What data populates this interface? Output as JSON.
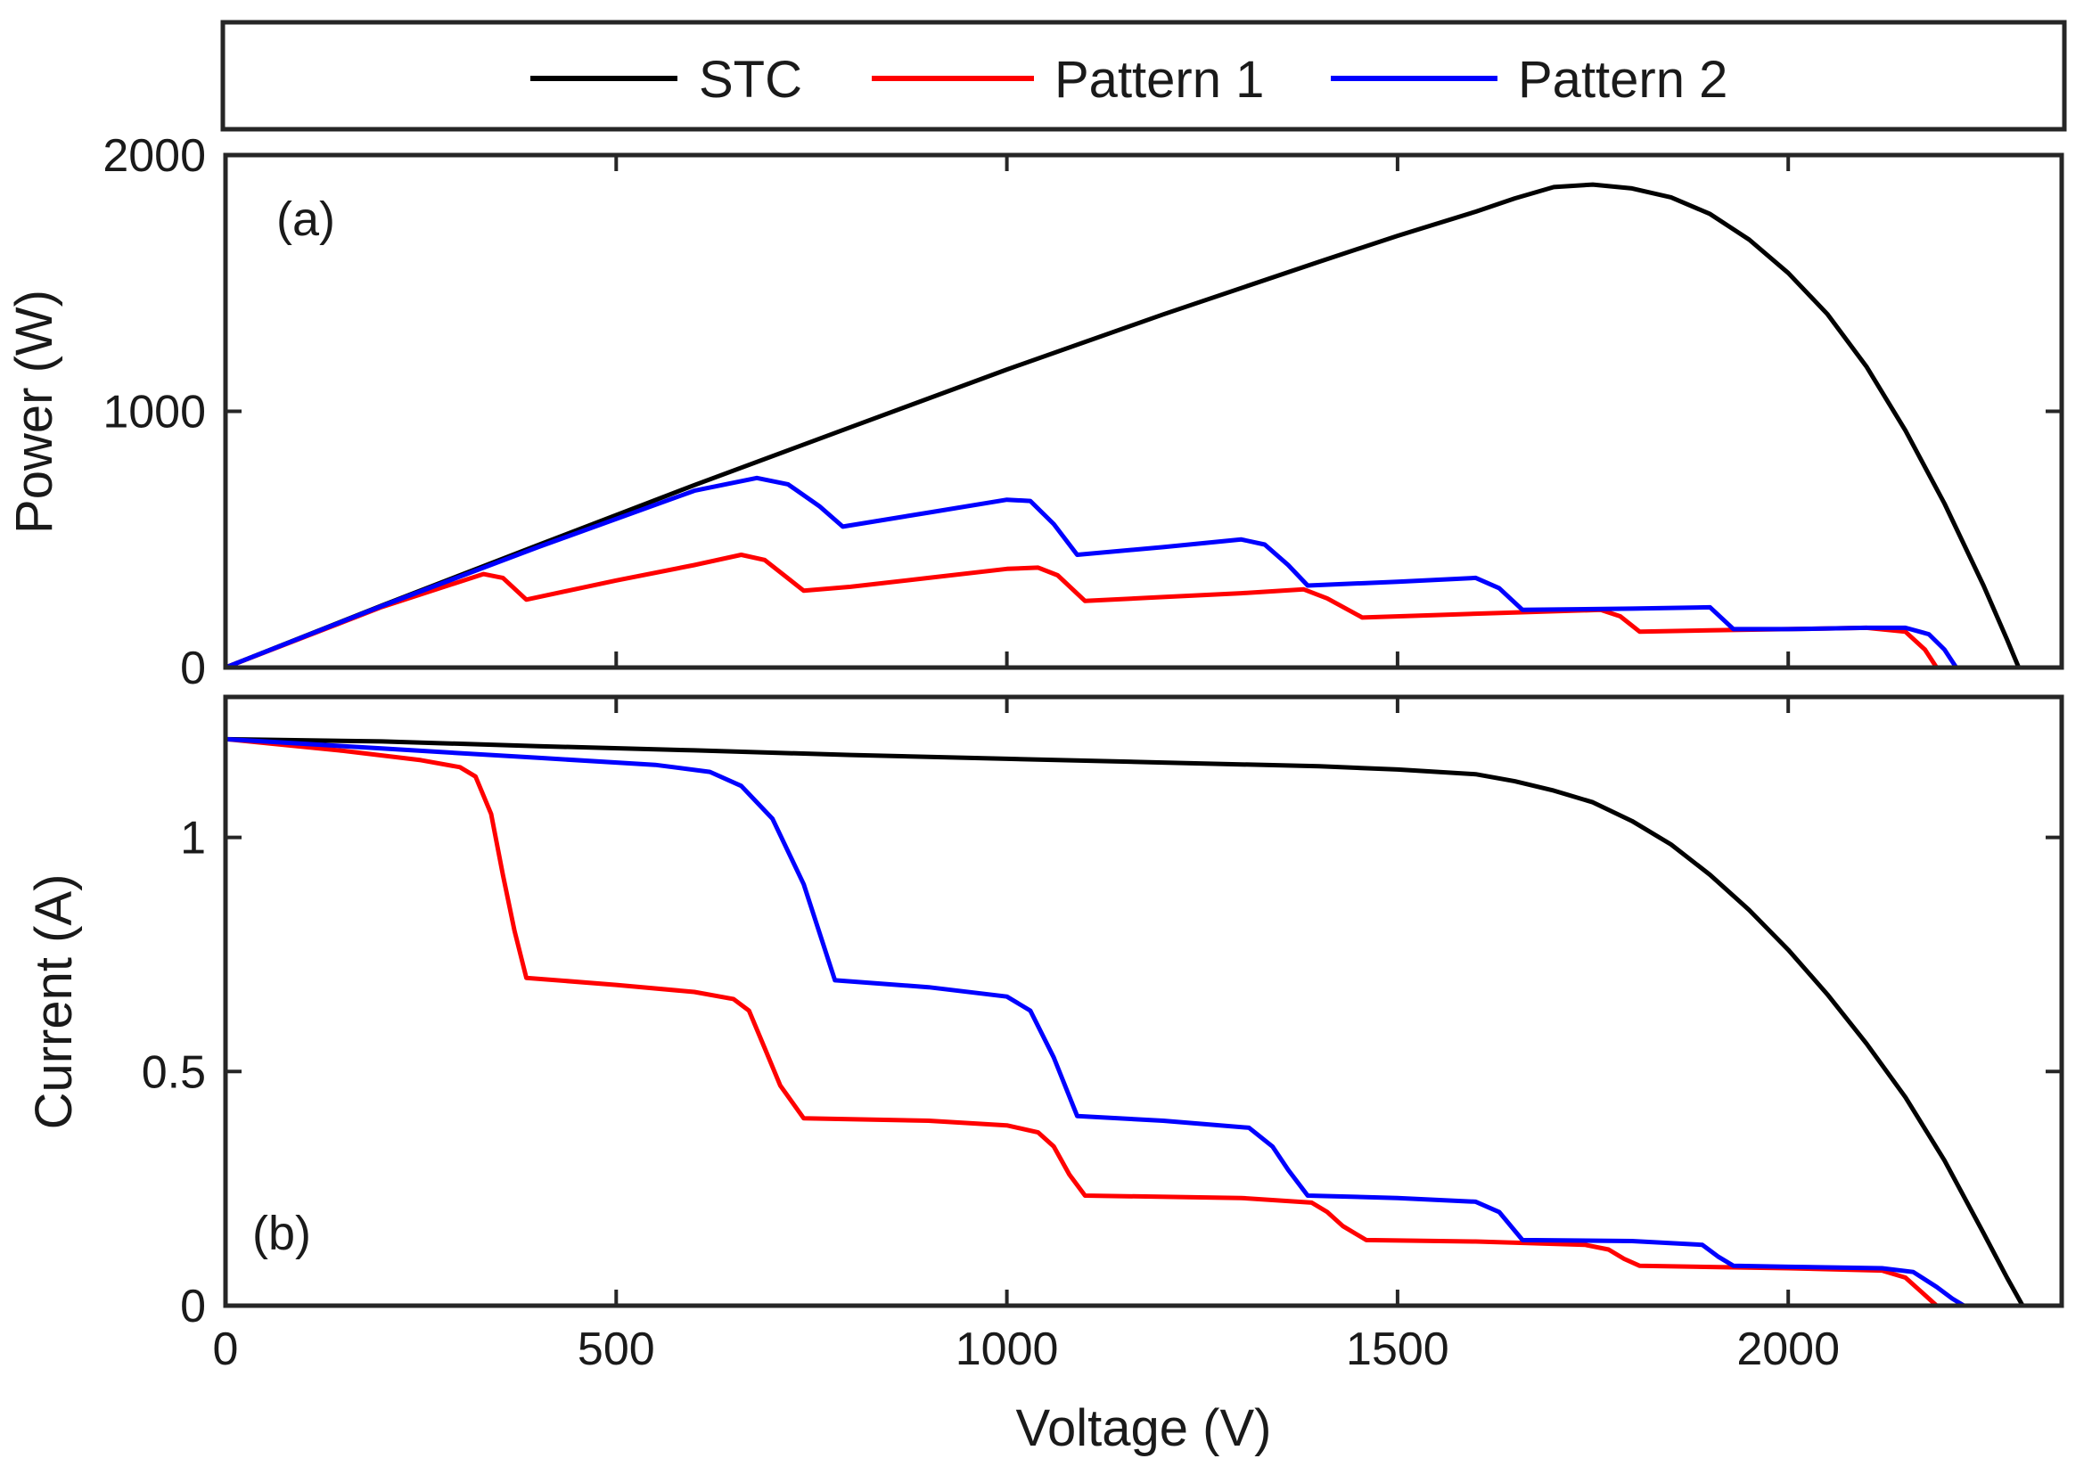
{
  "colors": {
    "STC": "#000000",
    "Pattern 1": "#ff0000",
    "Pattern 2": "#0000ff"
  },
  "legend": {
    "placement": "top",
    "entries": [
      "STC",
      "Pattern 1",
      "Pattern 2"
    ]
  },
  "chart_data": [
    {
      "type": "line",
      "panel_tag": "(a)",
      "ylabel": "Power (W)",
      "xlabel": "",
      "xlim": [
        0,
        2350
      ],
      "ylim": [
        0,
        2000
      ],
      "yticks": [
        0,
        1000,
        2000
      ],
      "xticks": [
        0,
        500,
        1000,
        1500,
        2000
      ],
      "show_xtick_labels": false,
      "grid": false,
      "series": [
        {
          "name": "STC",
          "x": [
            0,
            200,
            400,
            600,
            800,
            1000,
            1200,
            1400,
            1500,
            1600,
            1650,
            1700,
            1750,
            1800,
            1850,
            1900,
            1950,
            2000,
            2050,
            2100,
            2150,
            2200,
            2250,
            2280,
            2295
          ],
          "y": [
            0,
            242,
            478,
            712,
            938,
            1163,
            1378,
            1584,
            1685,
            1779,
            1831,
            1875,
            1885,
            1870,
            1835,
            1770,
            1670,
            1540,
            1380,
            1175,
            925,
            640,
            320,
            110,
            0
          ]
        },
        {
          "name": "Pattern 1",
          "x": [
            0,
            200,
            330,
            355,
            385,
            500,
            600,
            660,
            690,
            740,
            800,
            900,
            1000,
            1040,
            1065,
            1100,
            1200,
            1300,
            1380,
            1410,
            1455,
            1550,
            1650,
            1760,
            1785,
            1810,
            1900,
            2000,
            2100,
            2150,
            2175,
            2190
          ],
          "y": [
            0,
            236,
            365,
            350,
            265,
            340,
            400,
            440,
            420,
            300,
            315,
            350,
            385,
            390,
            360,
            260,
            275,
            290,
            305,
            270,
            195,
            205,
            215,
            225,
            200,
            140,
            145,
            150,
            155,
            140,
            70,
            0
          ]
        },
        {
          "name": "Pattern 2",
          "x": [
            0,
            200,
            400,
            600,
            680,
            720,
            760,
            790,
            900,
            1000,
            1030,
            1060,
            1090,
            1200,
            1300,
            1330,
            1360,
            1385,
            1500,
            1600,
            1630,
            1660,
            1800,
            1900,
            1930,
            2000,
            2100,
            2150,
            2180,
            2200,
            2215
          ],
          "y": [
            0,
            240,
            470,
            690,
            740,
            715,
            630,
            550,
            605,
            655,
            650,
            560,
            440,
            470,
            500,
            480,
            400,
            320,
            335,
            350,
            310,
            225,
            230,
            235,
            150,
            150,
            155,
            155,
            130,
            70,
            0
          ]
        }
      ]
    },
    {
      "type": "line",
      "panel_tag": "(b)",
      "ylabel": "Current (A)",
      "xlabel": "Voltage (V)",
      "xlim": [
        0,
        2350
      ],
      "ylim": [
        0,
        1.3
      ],
      "yticks": [
        0,
        0.5,
        1
      ],
      "ytick_labels": [
        "0",
        "0.5",
        "1"
      ],
      "xticks": [
        0,
        500,
        1000,
        1500,
        2000
      ],
      "show_xtick_labels": true,
      "grid": false,
      "series": [
        {
          "name": "STC",
          "x": [
            0,
            200,
            400,
            600,
            800,
            1000,
            1200,
            1400,
            1500,
            1600,
            1650,
            1700,
            1750,
            1800,
            1850,
            1900,
            1950,
            2000,
            2050,
            2100,
            2150,
            2200,
            2250,
            2280,
            2300
          ],
          "y": [
            1.21,
            1.205,
            1.195,
            1.186,
            1.176,
            1.168,
            1.16,
            1.152,
            1.145,
            1.135,
            1.12,
            1.1,
            1.075,
            1.035,
            0.985,
            0.92,
            0.845,
            0.76,
            0.665,
            0.56,
            0.445,
            0.31,
            0.155,
            0.06,
            0
          ]
        },
        {
          "name": "Pattern 1",
          "x": [
            0,
            150,
            250,
            300,
            320,
            340,
            355,
            370,
            385,
            500,
            600,
            650,
            670,
            690,
            710,
            740,
            900,
            1000,
            1040,
            1060,
            1080,
            1100,
            1300,
            1390,
            1410,
            1430,
            1460,
            1600,
            1740,
            1770,
            1790,
            1810,
            2000,
            2120,
            2150,
            2170,
            2190
          ],
          "y": [
            1.21,
            1.185,
            1.165,
            1.15,
            1.13,
            1.05,
            0.92,
            0.8,
            0.7,
            0.685,
            0.67,
            0.655,
            0.63,
            0.55,
            0.47,
            0.4,
            0.395,
            0.385,
            0.37,
            0.34,
            0.28,
            0.235,
            0.23,
            0.22,
            0.2,
            0.17,
            0.14,
            0.137,
            0.13,
            0.12,
            0.1,
            0.085,
            0.08,
            0.075,
            0.06,
            0.03,
            0
          ]
        },
        {
          "name": "Pattern 2",
          "x": [
            0,
            200,
            400,
            550,
            620,
            660,
            700,
            740,
            780,
            900,
            1000,
            1030,
            1060,
            1090,
            1200,
            1310,
            1340,
            1360,
            1385,
            1500,
            1600,
            1630,
            1660,
            1800,
            1890,
            1910,
            1930,
            2000,
            2120,
            2160,
            2190,
            2210,
            2225
          ],
          "y": [
            1.21,
            1.19,
            1.17,
            1.155,
            1.14,
            1.11,
            1.04,
            0.9,
            0.695,
            0.68,
            0.66,
            0.63,
            0.53,
            0.405,
            0.395,
            0.38,
            0.34,
            0.29,
            0.235,
            0.23,
            0.222,
            0.2,
            0.14,
            0.138,
            0.13,
            0.105,
            0.085,
            0.083,
            0.08,
            0.072,
            0.04,
            0.015,
            0
          ]
        }
      ]
    }
  ]
}
